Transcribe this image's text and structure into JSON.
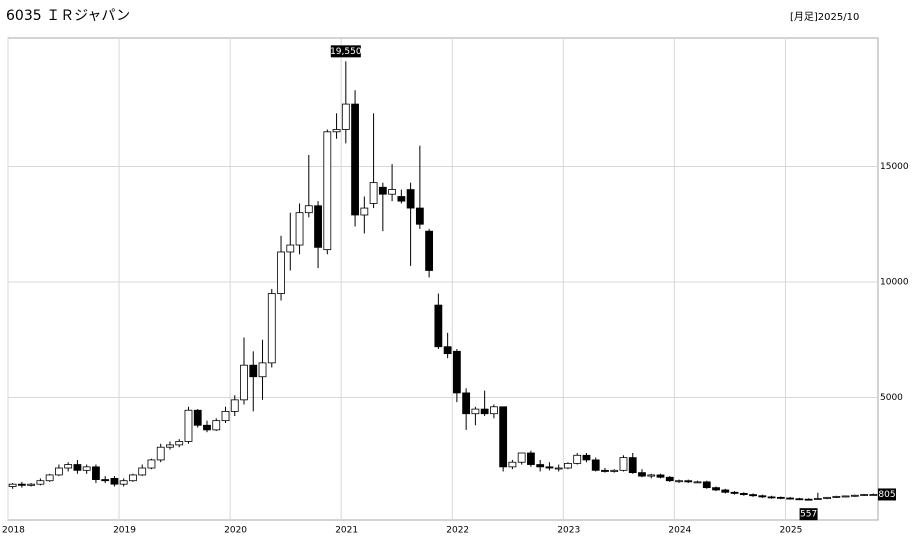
{
  "chart_data": {
    "type": "candlestick",
    "title": "6035 ＩＲジャパン",
    "subtitle": "[月足]2025/10",
    "categories": [
      "2018",
      null,
      null,
      null,
      null,
      null,
      null,
      null,
      null,
      null,
      null,
      null,
      "2019",
      null,
      null,
      null,
      null,
      null,
      null,
      null,
      null,
      null,
      null,
      null,
      "2020",
      null,
      null,
      null,
      null,
      null,
      null,
      null,
      null,
      null,
      null,
      null,
      "2021",
      null,
      null,
      null,
      null,
      null,
      null,
      null,
      null,
      null,
      null,
      null,
      "2022",
      null,
      null,
      null,
      null,
      null,
      null,
      null,
      null,
      null,
      null,
      null,
      "2023",
      null,
      null,
      null,
      null,
      null,
      null,
      null,
      null,
      null,
      null,
      null,
      "2024",
      null,
      null,
      null,
      null,
      null,
      null,
      null,
      null,
      null,
      null,
      null,
      "2025",
      null,
      null,
      null,
      null,
      null,
      null,
      null,
      null,
      null
    ],
    "open": [
      1150,
      1250,
      1200,
      1250,
      1400,
      1650,
      1950,
      2100,
      1850,
      2000,
      1450,
      1500,
      1250,
      1400,
      1650,
      1950,
      2300,
      2850,
      2950,
      3100,
      4450,
      3800,
      3600,
      4000,
      4400,
      4900,
      6400,
      5900,
      6500,
      9500,
      11300,
      11600,
      13000,
      13300,
      11400,
      16500,
      16600,
      17700,
      12900,
      13400,
      14100,
      13800,
      13700,
      14000,
      13200,
      12200,
      9000,
      7200,
      7000,
      5200,
      4300,
      4500,
      4300,
      4600,
      2000,
      2200,
      2600,
      2100,
      2000,
      1950,
      1950,
      2150,
      2500,
      2300,
      1850,
      1800,
      1850,
      2400,
      1750,
      1600,
      1650,
      1550,
      1400,
      1400,
      1350,
      1350,
      1100,
      1000,
      900,
      850,
      800,
      750,
      700,
      680,
      650,
      620,
      600,
      590,
      630,
      680,
      720,
      740,
      770,
      805
    ],
    "high": [
      1300,
      1350,
      1300,
      1500,
      1700,
      2100,
      2200,
      2300,
      2100,
      2100,
      1600,
      1600,
      1500,
      1700,
      2100,
      2350,
      3000,
      3100,
      3200,
      4600,
      4500,
      4000,
      4100,
      4600,
      5100,
      7600,
      7000,
      7500,
      9700,
      12000,
      13000,
      13400,
      15500,
      13500,
      16600,
      17300,
      19550,
      18300,
      13700,
      17300,
      14300,
      15100,
      14000,
      14300,
      15900,
      12300,
      9500,
      7800,
      7100,
      5400,
      4600,
      5300,
      4700,
      4600,
      2300,
      2600,
      2700,
      2300,
      2200,
      2100,
      2200,
      2600,
      2600,
      2400,
      1950,
      1900,
      2500,
      2600,
      1900,
      1700,
      1700,
      1600,
      1450,
      1450,
      1400,
      1400,
      1150,
      1050,
      950,
      900,
      850,
      800,
      750,
      720,
      700,
      660,
      640,
      880,
      700,
      750,
      760,
      800,
      830,
      850
    ],
    "low": [
      1050,
      1100,
      1150,
      1200,
      1350,
      1600,
      1800,
      1700,
      1700,
      1300,
      1300,
      1150,
      1150,
      1350,
      1600,
      1900,
      2200,
      2750,
      2850,
      3000,
      3700,
      3500,
      3550,
      3900,
      4200,
      4700,
      4400,
      4900,
      6300,
      9200,
      10500,
      11200,
      12800,
      10600,
      11200,
      16200,
      16000,
      12400,
      12100,
      13200,
      12200,
      13500,
      13400,
      10700,
      12300,
      10200,
      7100,
      6700,
      4800,
      3600,
      3800,
      4200,
      4100,
      1800,
      1900,
      2100,
      2000,
      1800,
      1850,
      1800,
      1900,
      2100,
      2200,
      1800,
      1750,
      1750,
      1800,
      1700,
      1550,
      1500,
      1500,
      1350,
      1300,
      1300,
      1300,
      1050,
      950,
      850,
      800,
      750,
      700,
      650,
      620,
      600,
      580,
      560,
      557,
      570,
      600,
      650,
      680,
      700,
      740,
      780
    ],
    "close": [
      1250,
      1200,
      1250,
      1400,
      1650,
      1950,
      2100,
      1850,
      2000,
      1450,
      1400,
      1250,
      1400,
      1650,
      1950,
      2300,
      2850,
      2950,
      3100,
      4450,
      3800,
      3600,
      4000,
      4400,
      4900,
      6400,
      5900,
      6500,
      9500,
      11300,
      11600,
      13000,
      13300,
      11500,
      16500,
      16600,
      17700,
      12900,
      13200,
      14300,
      13800,
      14000,
      13500,
      13200,
      12500,
      10500,
      7200,
      6900,
      5200,
      4300,
      4500,
      4300,
      4600,
      2000,
      2200,
      2600,
      2100,
      2000,
      1950,
      1950,
      2150,
      2500,
      2300,
      1850,
      1800,
      1850,
      2400,
      1750,
      1600,
      1650,
      1550,
      1400,
      1400,
      1350,
      1350,
      1100,
      1000,
      900,
      850,
      800,
      750,
      700,
      680,
      650,
      620,
      600,
      590,
      630,
      680,
      720,
      740,
      770,
      805,
      805
    ],
    "high_label": {
      "value": 19550,
      "label": "19,550"
    },
    "low_label": 557,
    "last_label": 805,
    "up_color": "#ffffff",
    "down_color": "#000000",
    "ylim": [
      -300,
      20560
    ],
    "yticks": [
      5000,
      10000,
      15000
    ],
    "grid": true
  }
}
